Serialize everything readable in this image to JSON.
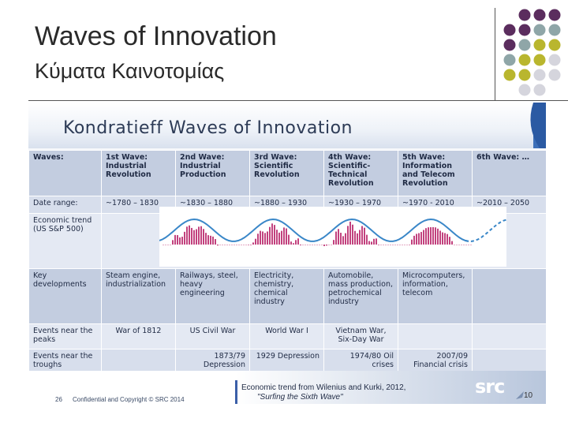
{
  "slide": {
    "title": "Waves of Innovation",
    "subtitle": "Κύματα Καινοτομίας",
    "page_number": "10"
  },
  "inner_slide": {
    "title": "Kondratieff Waves of Innovation",
    "table": {
      "header": [
        "Waves:",
        "1st Wave: Industrial Revolution",
        "2nd Wave: Industrial Production",
        "3rd Wave: Scientific Revolution",
        "4th Wave: Scientific-Technical Revolution",
        "5th Wave: Information and Telecom Revolution",
        "6th Wave: …"
      ],
      "date_label": "Date range:",
      "date_ranges": [
        "~1780 – 1830",
        "~1830 – 1880",
        "~1880 – 1930",
        "~1930 – 1970",
        "~1970 - 2010",
        "~2010 – 2050"
      ],
      "econ_label": "Economic trend (US S&P 500)",
      "key_label": "Key developments",
      "key_developments": [
        "Steam engine, industrialization",
        "Railways, steel, heavy engineering",
        "Electricity, chemistry, chemical industry",
        "Automobile, mass production, petrochemical industry",
        "Microcomputers, information, telecom",
        ""
      ],
      "peaks_label": "Events near the peaks",
      "peaks": [
        "War of 1812",
        "US Civil War",
        "World War I",
        "Vietnam War, Six-Day War",
        "",
        ""
      ],
      "troughs_label": "Events near the troughs",
      "troughs": [
        "",
        "1873/79 Depression",
        "1929 Depression",
        "1974/80 Oil crises",
        "2007/09 Financial crisis",
        ""
      ]
    },
    "footer": {
      "number": "26",
      "copyright": "Confidential and Copyright © SRC 2014",
      "source_line1": "Economic trend from Wilenius and Kurki, 2012,",
      "source_line2": "\"Surfing the Sixth Wave\"",
      "logo": "src"
    }
  },
  "colors": {
    "dot_purple": "#5b2d5e",
    "dot_gray": "#8fa6a8",
    "dot_olive": "#b9b62e",
    "dot_light": "#d5d5dd",
    "trend_line": "#3a87c8",
    "bars": "#c2427e"
  }
}
